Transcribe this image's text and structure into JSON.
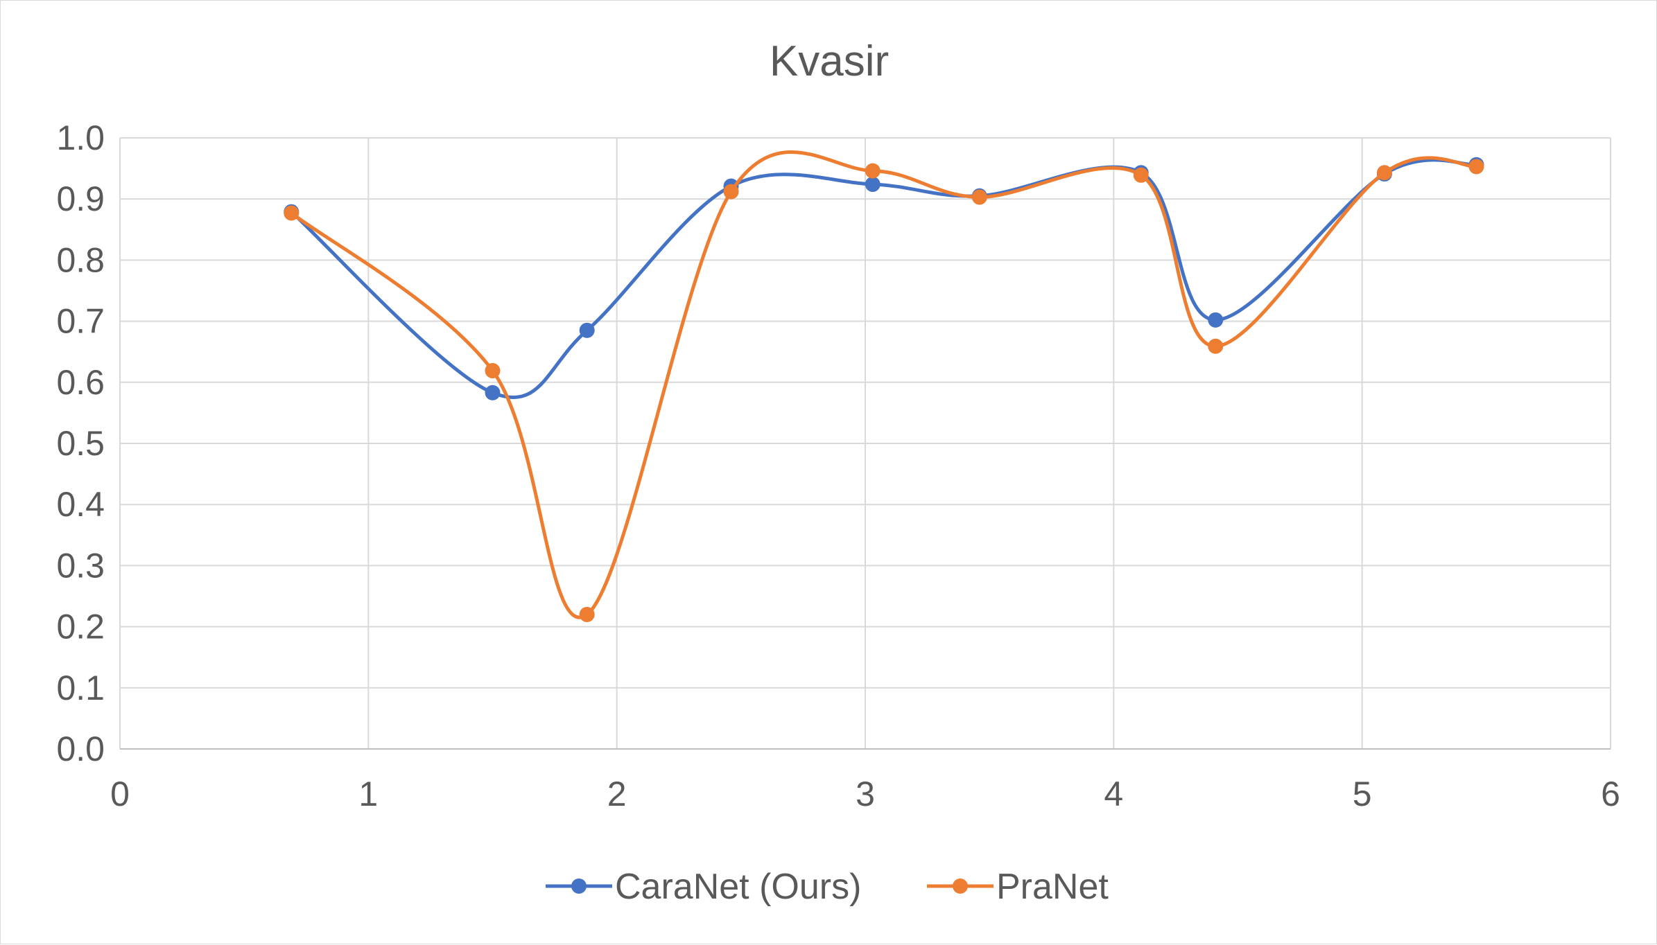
{
  "chart_data": {
    "type": "scatter",
    "title": "Kvasir",
    "xlabel": "",
    "ylabel": "",
    "xlim": [
      0,
      6
    ],
    "ylim": [
      0,
      1.0
    ],
    "x_ticks": [
      "0",
      "1",
      "2",
      "3",
      "4",
      "5",
      "6"
    ],
    "y_ticks": [
      "0.0",
      "0.1",
      "0.2",
      "0.3",
      "0.4",
      "0.5",
      "0.6",
      "0.7",
      "0.8",
      "0.9",
      "1.0"
    ],
    "grid": true,
    "smooth_lines": true,
    "legend_position": "bottom",
    "series": [
      {
        "name": "CaraNet (Ours)",
        "color": "#4472c4",
        "points": [
          {
            "x": 0.69,
            "y": 0.879
          },
          {
            "x": 1.5,
            "y": 0.583
          },
          {
            "x": 1.88,
            "y": 0.685
          },
          {
            "x": 2.46,
            "y": 0.921
          },
          {
            "x": 3.03,
            "y": 0.924
          },
          {
            "x": 3.46,
            "y": 0.905
          },
          {
            "x": 4.11,
            "y": 0.943
          },
          {
            "x": 4.41,
            "y": 0.702
          },
          {
            "x": 5.09,
            "y": 0.941
          },
          {
            "x": 5.46,
            "y": 0.956
          }
        ]
      },
      {
        "name": "PraNet",
        "color": "#ed7d31",
        "points": [
          {
            "x": 0.69,
            "y": 0.877
          },
          {
            "x": 1.5,
            "y": 0.619
          },
          {
            "x": 1.88,
            "y": 0.22
          },
          {
            "x": 2.46,
            "y": 0.912
          },
          {
            "x": 3.03,
            "y": 0.946
          },
          {
            "x": 3.46,
            "y": 0.903
          },
          {
            "x": 4.11,
            "y": 0.939
          },
          {
            "x": 4.41,
            "y": 0.659
          },
          {
            "x": 5.09,
            "y": 0.943
          },
          {
            "x": 5.46,
            "y": 0.953
          }
        ]
      }
    ]
  }
}
